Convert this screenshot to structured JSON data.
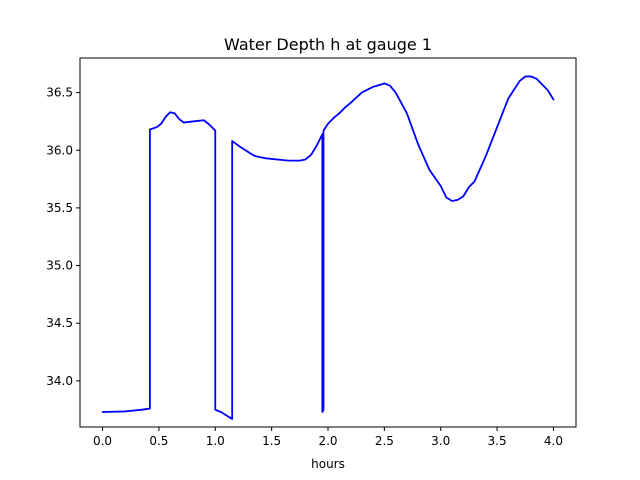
{
  "chart_data": {
    "type": "line",
    "title": "Water Depth h at gauge 1",
    "xlabel": "hours",
    "ylabel": "",
    "xlim": [
      -0.2,
      4.2
    ],
    "ylim": [
      33.6,
      36.8
    ],
    "xticks": [
      {
        "value": 0.0,
        "label": "0.0"
      },
      {
        "value": 0.5,
        "label": "0.5"
      },
      {
        "value": 1.0,
        "label": "1.0"
      },
      {
        "value": 1.5,
        "label": "1.5"
      },
      {
        "value": 2.0,
        "label": "2.0"
      },
      {
        "value": 2.5,
        "label": "2.5"
      },
      {
        "value": 3.0,
        "label": "3.0"
      },
      {
        "value": 3.5,
        "label": "3.5"
      },
      {
        "value": 4.0,
        "label": "4.0"
      }
    ],
    "yticks": [
      {
        "value": 34.0,
        "label": "34.0"
      },
      {
        "value": 34.5,
        "label": "34.5"
      },
      {
        "value": 35.0,
        "label": "35.0"
      },
      {
        "value": 35.5,
        "label": "35.5"
      },
      {
        "value": 36.0,
        "label": "36.0"
      },
      {
        "value": 36.5,
        "label": "36.5"
      }
    ],
    "grid": false,
    "series": [
      {
        "color": "#0000ff",
        "x": [
          0.0,
          0.2,
          0.35,
          0.42,
          0.42,
          0.48,
          0.52,
          0.56,
          0.6,
          0.64,
          0.68,
          0.72,
          0.8,
          0.9,
          0.95,
          1.0,
          1.0,
          1.05,
          1.1,
          1.15,
          1.15,
          1.22,
          1.3,
          1.35,
          1.45,
          1.55,
          1.65,
          1.75,
          1.8,
          1.85,
          1.9,
          1.95,
          1.95,
          1.96,
          1.96,
          1.98,
          2.0,
          2.05,
          2.1,
          2.15,
          2.2,
          2.3,
          2.4,
          2.47,
          2.5,
          2.55,
          2.6,
          2.7,
          2.8,
          2.9,
          3.0,
          3.02,
          3.05,
          3.1,
          3.15,
          3.2,
          3.25,
          3.3,
          3.4,
          3.5,
          3.6,
          3.7,
          3.75,
          3.8,
          3.85,
          3.9,
          3.95,
          4.0
        ],
        "y": [
          33.73,
          33.735,
          33.75,
          33.76,
          36.18,
          36.2,
          36.23,
          36.29,
          36.33,
          36.32,
          36.27,
          36.24,
          36.25,
          36.26,
          36.22,
          36.17,
          33.75,
          33.73,
          33.7,
          33.67,
          36.08,
          36.03,
          35.98,
          35.95,
          35.93,
          35.92,
          35.91,
          35.91,
          35.92,
          35.96,
          36.04,
          36.14,
          33.73,
          33.75,
          36.17,
          36.2,
          36.23,
          36.28,
          36.32,
          36.37,
          36.41,
          36.5,
          36.55,
          36.57,
          36.58,
          36.56,
          36.5,
          36.32,
          36.05,
          35.83,
          35.69,
          35.65,
          35.59,
          35.56,
          35.57,
          35.6,
          35.68,
          35.73,
          35.95,
          36.2,
          36.45,
          36.6,
          36.64,
          36.64,
          36.62,
          36.57,
          36.52,
          36.44
        ]
      }
    ]
  }
}
